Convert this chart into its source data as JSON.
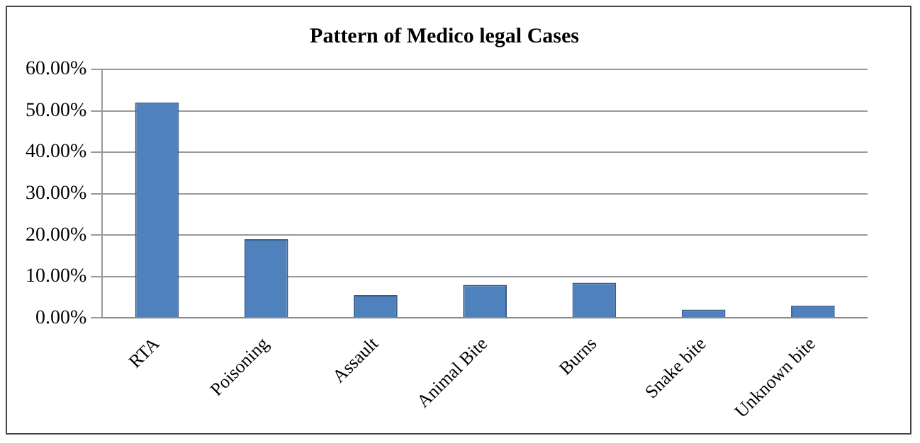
{
  "chart_data": {
    "type": "bar",
    "title": "Pattern of Medico legal Cases",
    "categories": [
      "RTA",
      "Poisoning",
      "Assault",
      "Animal Bite",
      "Burns",
      "Snake bite",
      "Unknown bite"
    ],
    "values": [
      52,
      19,
      5.5,
      8,
      8.5,
      2,
      3
    ],
    "color": "#4f81bd",
    "ylim": [
      0,
      60
    ],
    "yticks": [
      {
        "value": 0,
        "label": "0.00%"
      },
      {
        "value": 10,
        "label": "10.00%"
      },
      {
        "value": 20,
        "label": "20.00%"
      },
      {
        "value": 30,
        "label": "30.00%"
      },
      {
        "value": 40,
        "label": "40.00%"
      },
      {
        "value": 50,
        "label": "50.00%"
      },
      {
        "value": 60,
        "label": "60.00%"
      }
    ],
    "grid": "y",
    "legend": false
  }
}
